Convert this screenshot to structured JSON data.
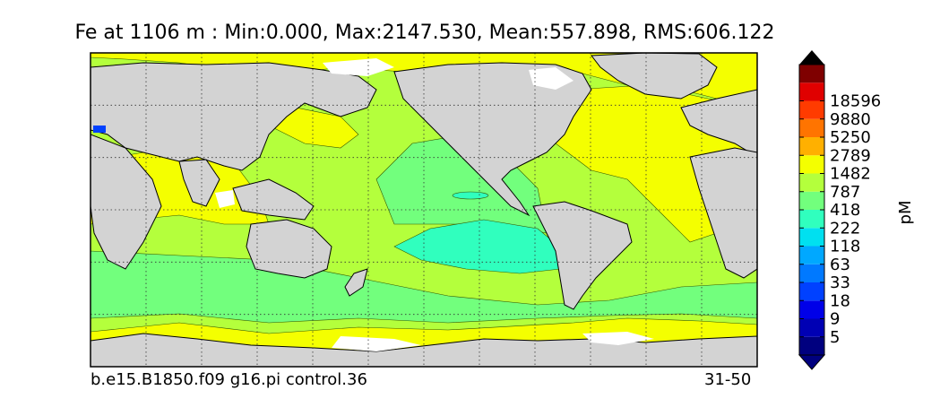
{
  "title": "Fe at 1106 m : Min:0.000, Max:2147.530, Mean:557.898, RMS:606.122",
  "caption_left": "b.e15.B1850.f09 g16.pi control.36",
  "caption_right": "31-50",
  "colorbar": {
    "unit": "pM",
    "ticks": [
      "5",
      "9",
      "18",
      "33",
      "63",
      "118",
      "222",
      "418",
      "787",
      "1482",
      "2789",
      "5250",
      "9880",
      "18596"
    ],
    "colors": [
      "#00007f",
      "#0000b4",
      "#0000e8",
      "#0041ff",
      "#0079ff",
      "#00a8ff",
      "#00e0f0",
      "#30ffbe",
      "#72ff7d",
      "#b4ff3c",
      "#f4ff00",
      "#ffb000",
      "#ff7400",
      "#ff3b00",
      "#e00000",
      "#7f0000"
    ],
    "under_color": "#00007f",
    "over_color": "#000000"
  },
  "map": {
    "colors": {
      "land": "#d3d3d3",
      "missing": "#ffffff",
      "c33": "#0041ff",
      "c118": "#30ffbe",
      "c222": "#72ff7d",
      "c418": "#b4ff3c",
      "c787": "#f4ff00"
    }
  }
}
